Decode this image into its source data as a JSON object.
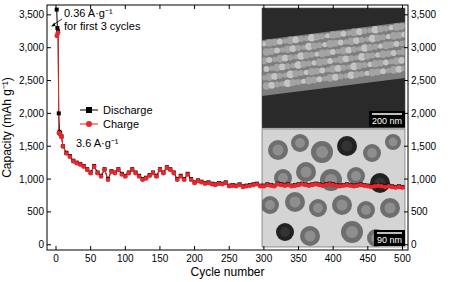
{
  "chart_data": {
    "type": "line",
    "x_label": "Cycle number",
    "y_label": "Capacity (mAh g⁻¹)",
    "annotations": [
      "0.36 A·g⁻¹",
      "for first 3 cycles",
      "3.6 A·g⁻¹",
      "200 nm",
      "90 nm"
    ],
    "x": [
      1,
      2,
      3,
      4,
      5,
      6,
      8,
      10,
      15,
      20,
      25,
      30,
      35,
      40,
      45,
      50,
      55,
      60,
      65,
      70,
      75,
      80,
      85,
      90,
      95,
      100,
      105,
      110,
      115,
      120,
      125,
      130,
      135,
      140,
      145,
      150,
      155,
      160,
      165,
      170,
      175,
      180,
      185,
      190,
      195,
      200,
      205,
      210,
      215,
      220,
      225,
      230,
      235,
      240,
      245,
      250,
      255,
      260,
      265,
      270,
      275,
      280,
      285,
      290,
      295,
      300,
      305,
      310,
      315,
      320,
      325,
      330,
      335,
      340,
      345,
      350,
      355,
      360,
      365,
      370,
      375,
      380,
      385,
      390,
      395,
      400,
      405,
      410,
      415,
      420,
      425,
      430,
      435,
      440,
      445,
      450,
      455,
      460,
      465,
      470,
      475,
      480,
      485,
      490,
      495,
      500
    ],
    "series": [
      {
        "name": "Discharge",
        "color": "#000000",
        "marker": "square",
        "line_style": "solid",
        "values": [
          3580,
          3300,
          3250,
          2000,
          1720,
          1700,
          1650,
          1500,
          1400,
          1350,
          1280,
          1250,
          1230,
          1200,
          1150,
          1100,
          1200,
          1100,
          1050,
          1150,
          1000,
          1120,
          1100,
          1150,
          1080,
          1050,
          1100,
          1150,
          1100,
          1050,
          1000,
          1020,
          1060,
          1100,
          1050,
          1150,
          1100,
          1180,
          1150,
          1100,
          1000,
          1050,
          1000,
          1080,
          1000,
          950,
          980,
          960,
          940,
          950,
          930,
          920,
          940,
          930,
          950,
          900,
          910,
          900,
          920,
          890,
          900,
          910,
          920,
          930,
          900,
          900,
          920,
          910,
          900,
          930,
          920,
          910,
          920,
          900,
          910,
          920,
          930,
          920,
          910,
          920,
          930,
          920,
          910,
          920,
          930,
          920,
          910,
          900,
          910,
          920,
          910,
          900,
          910,
          920,
          910,
          900,
          890,
          900,
          910,
          900,
          890,
          900,
          890,
          880,
          890,
          880
        ]
      },
      {
        "name": "Charge",
        "color": "#e8262b",
        "marker": "circle",
        "line_style": "solid",
        "values": [
          3180,
          3200,
          3230,
          1700,
          1700,
          1680,
          1640,
          1500,
          1390,
          1340,
          1270,
          1240,
          1220,
          1190,
          1140,
          1090,
          1190,
          1090,
          1040,
          1140,
          990,
          1110,
          1090,
          1140,
          1070,
          1040,
          1090,
          1140,
          1090,
          1040,
          990,
          1010,
          1050,
          1090,
          1040,
          1140,
          1090,
          1170,
          1140,
          1090,
          990,
          1040,
          990,
          1070,
          990,
          940,
          970,
          950,
          930,
          940,
          920,
          910,
          930,
          920,
          940,
          890,
          900,
          890,
          910,
          880,
          890,
          900,
          910,
          920,
          890,
          890,
          910,
          900,
          890,
          920,
          910,
          900,
          910,
          890,
          900,
          910,
          920,
          910,
          900,
          910,
          920,
          910,
          900,
          910,
          920,
          910,
          900,
          890,
          900,
          910,
          900,
          890,
          900,
          910,
          900,
          890,
          880,
          890,
          900,
          890,
          880,
          890,
          880,
          870,
          880,
          870
        ]
      }
    ],
    "xlim": [
      -13,
      508
    ],
    "xticks": [
      0,
      50,
      100,
      150,
      200,
      250,
      300,
      350,
      400,
      450,
      500
    ],
    "ylim": [
      -80,
      3650
    ],
    "yticks": [
      0,
      500,
      {
        "value": 1000,
        "label": "1,000"
      },
      {
        "value": 1500,
        "label": "1,500"
      },
      {
        "value": 2000,
        "label": "2,000"
      },
      {
        "value": 2500,
        "label": "2,500"
      },
      {
        "value": 3000,
        "label": "3,000"
      },
      {
        "value": 3500,
        "label": "3,500"
      }
    ],
    "y2lim": [
      -80,
      3650
    ],
    "y2ticks": [
      0,
      500,
      {
        "value": 1000,
        "label": "1,000"
      },
      {
        "value": 1500,
        "label": "1,500"
      },
      {
        "value": 2000,
        "label": "2,000"
      },
      {
        "value": 2500,
        "label": "2,500"
      },
      {
        "value": 3000,
        "label": "3,000"
      },
      {
        "value": 3500,
        "label": "3,500"
      }
    ],
    "legend": "upper left",
    "grid": false
  }
}
